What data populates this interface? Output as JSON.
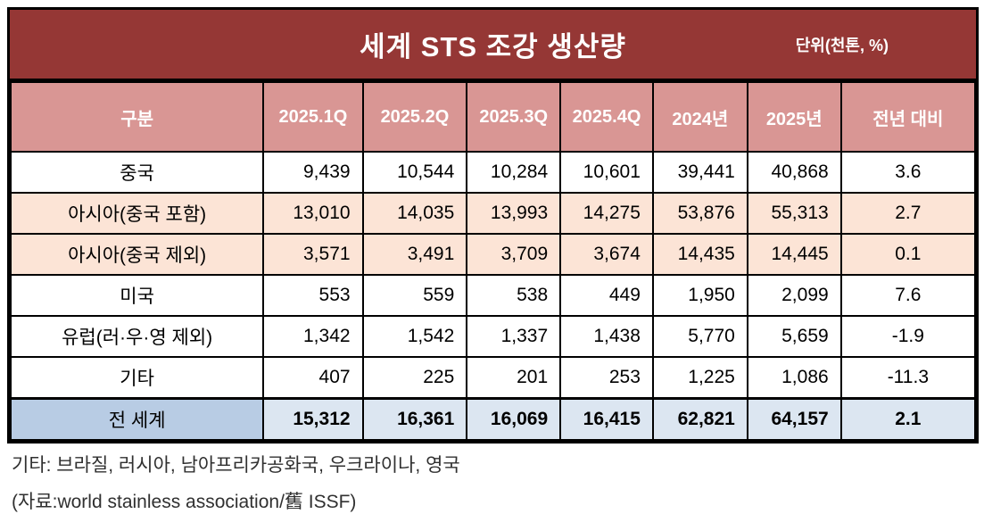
{
  "colors": {
    "title_bg": "#953735",
    "header_bg": "#D99694",
    "band_tint": "#FCE4D6",
    "total_label_bg": "#B8CCE4",
    "total_value_bg": "#DCE6F1",
    "border": "#000000",
    "title_text": "#FFFFFF",
    "body_text": "#000000",
    "note_text": "#303030"
  },
  "chart_data": {
    "type": "table",
    "title": "세계 STS 조강 생산량",
    "unit": "단위(천톤, %)",
    "columns": [
      "구분",
      "2025.1Q",
      "2025.2Q",
      "2025.3Q",
      "2025.4Q",
      "2024년",
      "2025년",
      "전년 대비"
    ],
    "rows": [
      {
        "label": "중국",
        "values": [
          "9,439",
          "10,544",
          "10,284",
          "10,601",
          "39,441",
          "40,868",
          "3.6"
        ],
        "band": "plain"
      },
      {
        "label": "아시아(중국 포함)",
        "values": [
          "13,010",
          "14,035",
          "13,993",
          "14,275",
          "53,876",
          "55,313",
          "2.7"
        ],
        "band": "tint"
      },
      {
        "label": "아시아(중국 제외)",
        "values": [
          "3,571",
          "3,491",
          "3,709",
          "3,674",
          "14,435",
          "14,445",
          "0.1"
        ],
        "band": "tint"
      },
      {
        "label": "미국",
        "values": [
          "553",
          "559",
          "538",
          "449",
          "1,950",
          "2,099",
          "7.6"
        ],
        "band": "plain"
      },
      {
        "label": "유럽(러·우·영 제외)",
        "values": [
          "1,342",
          "1,542",
          "1,337",
          "1,438",
          "5,770",
          "5,659",
          "-1.9"
        ],
        "band": "plain"
      },
      {
        "label": "기타",
        "values": [
          "407",
          "225",
          "201",
          "253",
          "1,225",
          "1,086",
          "-11.3"
        ],
        "band": "plain"
      },
      {
        "label": "전 세계",
        "values": [
          "15,312",
          "16,361",
          "16,069",
          "16,415",
          "62,821",
          "64,157",
          "2.1"
        ],
        "band": "total"
      }
    ],
    "notes": [
      "기타: 브라질, 러시아, 남아프리카공화국, 우크라이나, 영국",
      "(자료:world stainless association/舊 ISSF)"
    ]
  }
}
